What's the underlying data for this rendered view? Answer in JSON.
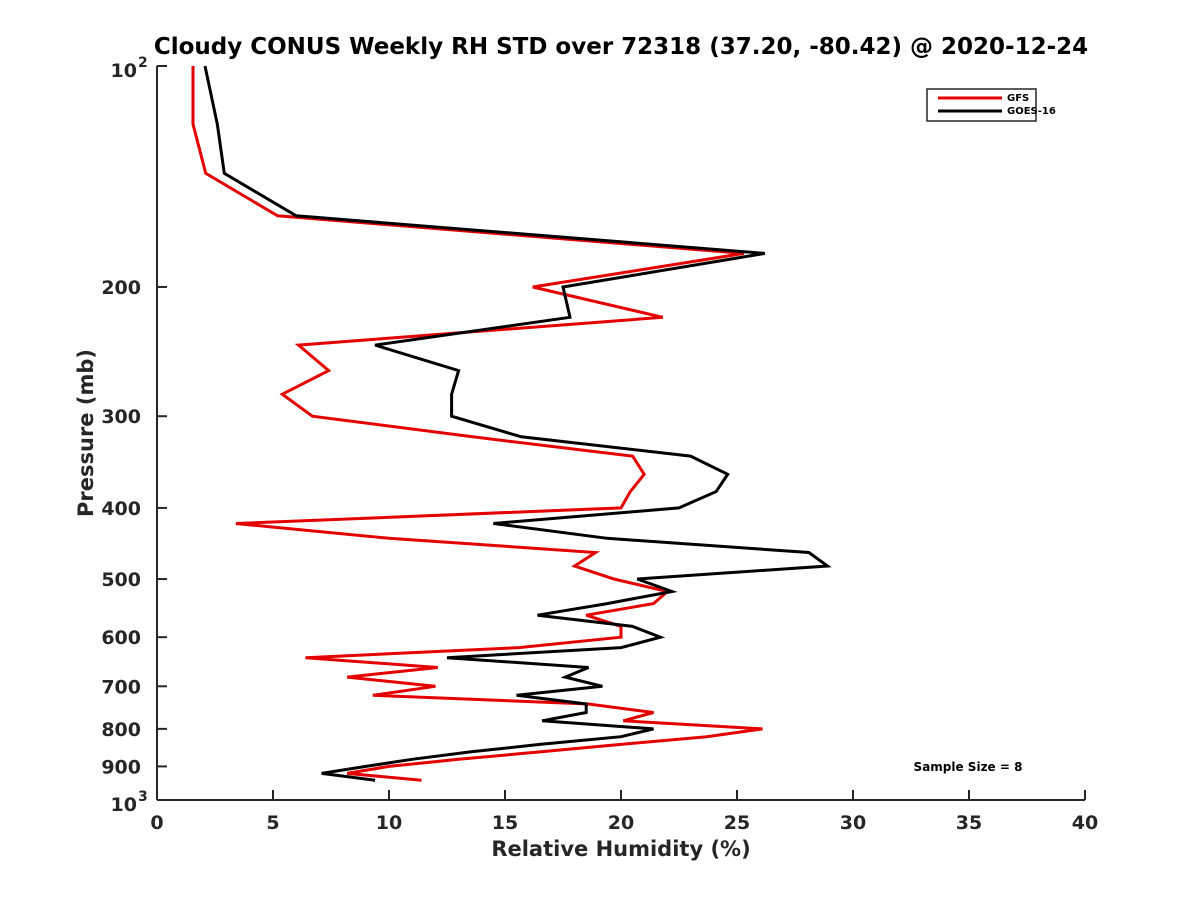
{
  "chart_data": {
    "type": "line",
    "title": "Cloudy CONUS Weekly RH STD over 72318 (37.20, -80.42) @ 2020-12-24",
    "xlabel": "Relative Humidity (%)",
    "ylabel": "Pressure (mb)",
    "xlim": [
      0,
      40
    ],
    "ylim": [
      100,
      1000
    ],
    "yscale": "log",
    "yreversed": true,
    "grid": false,
    "legend_position": "top-right",
    "annotation": "Sample Size = 8",
    "x_ticks": [
      {
        "value": 0,
        "label": "0"
      },
      {
        "value": 5,
        "label": "5"
      },
      {
        "value": 10,
        "label": "10"
      },
      {
        "value": 15,
        "label": "15"
      },
      {
        "value": 20,
        "label": "20"
      },
      {
        "value": 25,
        "label": "25"
      },
      {
        "value": 30,
        "label": "30"
      },
      {
        "value": 35,
        "label": "35"
      },
      {
        "value": 40,
        "label": "40"
      }
    ],
    "y_ticks": [
      {
        "value": 100,
        "label": "10",
        "sup": "2"
      },
      {
        "value": 200,
        "label": "200",
        "sup": ""
      },
      {
        "value": 300,
        "label": "300",
        "sup": ""
      },
      {
        "value": 400,
        "label": "400",
        "sup": ""
      },
      {
        "value": 500,
        "label": "500",
        "sup": ""
      },
      {
        "value": 600,
        "label": "600",
        "sup": ""
      },
      {
        "value": 700,
        "label": "700",
        "sup": ""
      },
      {
        "value": 800,
        "label": "800",
        "sup": ""
      },
      {
        "value": 900,
        "label": "900",
        "sup": ""
      },
      {
        "value": 1000,
        "label": "10",
        "sup": "3"
      }
    ],
    "pressure": [
      100,
      120,
      140,
      160,
      180,
      200,
      220,
      240,
      260,
      280,
      300,
      320,
      340,
      360,
      380,
      400,
      420,
      440,
      460,
      480,
      500,
      520,
      540,
      560,
      580,
      600,
      620,
      640,
      660,
      680,
      700,
      720,
      740,
      760,
      780,
      800,
      820,
      840,
      860,
      880,
      900,
      920,
      940
    ],
    "series": [
      {
        "name": "GFS",
        "color": "#e50000",
        "values": [
          1.55,
          1.55,
          2.1,
          5.2,
          25.3,
          16.2,
          21.8,
          6.1,
          7.4,
          5.4,
          6.7,
          13.6,
          20.5,
          21.0,
          20.4,
          20.0,
          3.4,
          10.0,
          18.9,
          18.0,
          19.7,
          22.0,
          21.4,
          18.5,
          20.0,
          20.0,
          15.6,
          6.4,
          12.1,
          8.2,
          12.0,
          9.3,
          18.6,
          21.4,
          20.1,
          26.1,
          23.7,
          20.0,
          16.5,
          13.0,
          10.0,
          8.2,
          11.4
        ]
      },
      {
        "name": "GOES-16",
        "color": "#000000",
        "values": [
          2.07,
          2.6,
          2.9,
          6.0,
          26.2,
          17.5,
          17.8,
          9.4,
          13.0,
          12.7,
          12.7,
          15.7,
          23.0,
          24.6,
          24.1,
          22.5,
          14.5,
          19.4,
          28.1,
          28.9,
          20.7,
          22.2,
          19.4,
          16.4,
          20.5,
          21.7,
          20.0,
          12.5,
          18.6,
          17.6,
          19.2,
          15.5,
          18.5,
          18.5,
          16.6,
          21.4,
          20.0,
          16.5,
          13.5,
          11.0,
          9.0,
          7.1,
          9.4
        ]
      }
    ]
  }
}
